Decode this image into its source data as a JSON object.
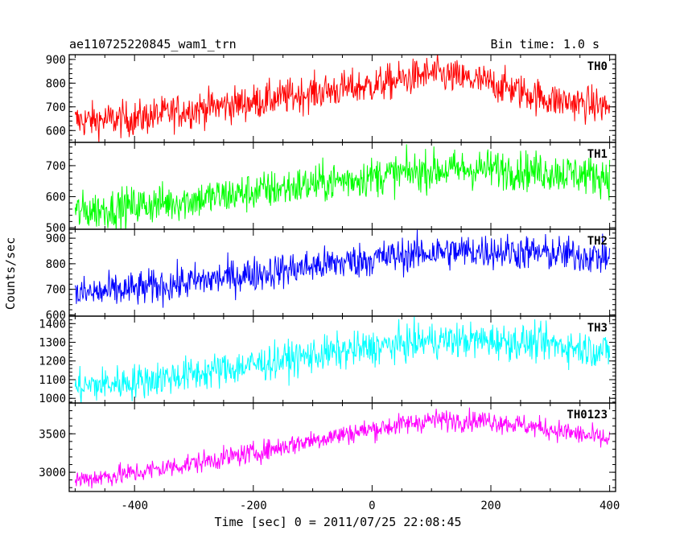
{
  "header": {
    "source": "ae110725220845_wam1_trn",
    "bin_time": "Bin time: 1.0 s"
  },
  "chart_data": {
    "type": "line",
    "xlabel": "Time [sec] 0 = 2011/07/25 22:08:45",
    "ylabel": "Counts/sec",
    "xlim": [
      -510,
      410
    ],
    "x_ticks": [
      -400,
      -200,
      0,
      200,
      400
    ],
    "x_step": 1.0,
    "series": [
      {
        "name": "TH0",
        "color": "#ff0000",
        "ylim": [
          550,
          920
        ],
        "y_ticks": [
          600,
          700,
          800,
          900
        ],
        "trend": [
          [
            -500,
            640
          ],
          [
            -400,
            650
          ],
          [
            -300,
            690
          ],
          [
            -200,
            720
          ],
          [
            -100,
            760
          ],
          [
            0,
            790
          ],
          [
            100,
            840
          ],
          [
            200,
            800
          ],
          [
            300,
            730
          ],
          [
            400,
            700
          ]
        ],
        "noise": 38
      },
      {
        "name": "TH1",
        "color": "#00ff00",
        "ylim": [
          495,
          775
        ],
        "y_ticks": [
          500,
          600,
          700
        ],
        "trend": [
          [
            -500,
            550
          ],
          [
            -400,
            570
          ],
          [
            -300,
            590
          ],
          [
            -200,
            615
          ],
          [
            -100,
            640
          ],
          [
            0,
            665
          ],
          [
            100,
            685
          ],
          [
            200,
            690
          ],
          [
            300,
            680
          ],
          [
            400,
            665
          ]
        ],
        "noise": 32
      },
      {
        "name": "TH2",
        "color": "#0000ff",
        "ylim": [
          595,
          935
        ],
        "y_ticks": [
          600,
          700,
          800,
          900
        ],
        "trend": [
          [
            -500,
            680
          ],
          [
            -400,
            700
          ],
          [
            -300,
            730
          ],
          [
            -200,
            760
          ],
          [
            -100,
            790
          ],
          [
            0,
            820
          ],
          [
            100,
            845
          ],
          [
            200,
            850
          ],
          [
            300,
            840
          ],
          [
            400,
            825
          ]
        ],
        "noise": 35
      },
      {
        "name": "TH3",
        "color": "#00ffff",
        "ylim": [
          975,
          1440
        ],
        "y_ticks": [
          1000,
          1100,
          1200,
          1300,
          1400
        ],
        "trend": [
          [
            -500,
            1060
          ],
          [
            -400,
            1090
          ],
          [
            -300,
            1130
          ],
          [
            -200,
            1180
          ],
          [
            -100,
            1230
          ],
          [
            0,
            1270
          ],
          [
            100,
            1310
          ],
          [
            200,
            1310
          ],
          [
            300,
            1290
          ],
          [
            400,
            1250
          ]
        ],
        "noise": 48
      },
      {
        "name": "TH0123",
        "color": "#ff00ff",
        "ylim": [
          2750,
          3900
        ],
        "y_ticks": [
          3000,
          3500
        ],
        "trend": [
          [
            -500,
            2900
          ],
          [
            -400,
            2990
          ],
          [
            -300,
            3120
          ],
          [
            -200,
            3250
          ],
          [
            -100,
            3420
          ],
          [
            0,
            3560
          ],
          [
            100,
            3680
          ],
          [
            200,
            3670
          ],
          [
            300,
            3560
          ],
          [
            400,
            3420
          ]
        ],
        "noise": 70
      }
    ]
  }
}
